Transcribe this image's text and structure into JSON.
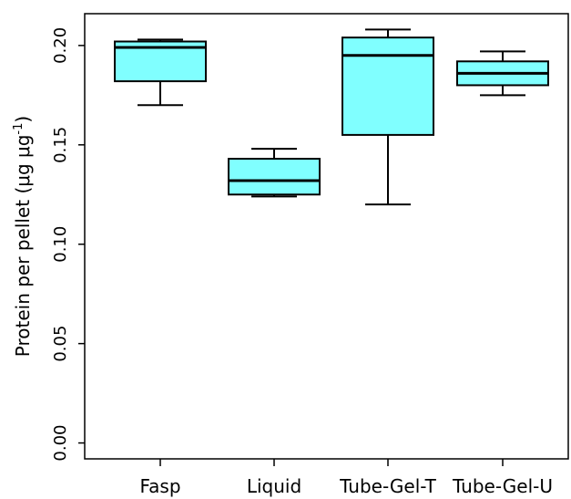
{
  "chart_data": {
    "type": "box",
    "categories": [
      "Fasp",
      "Liquid",
      "Tube-Gel-T",
      "Tube-Gel-U"
    ],
    "boxes": [
      {
        "name": "Fasp",
        "whisker_low": 0.17,
        "q1": 0.182,
        "median": 0.199,
        "q3": 0.202,
        "whisker_high": 0.203
      },
      {
        "name": "Liquid",
        "whisker_low": 0.124,
        "q1": 0.125,
        "median": 0.132,
        "q3": 0.143,
        "whisker_high": 0.148
      },
      {
        "name": "Tube-Gel-T",
        "whisker_low": 0.12,
        "q1": 0.155,
        "median": 0.195,
        "q3": 0.204,
        "whisker_high": 0.208
      },
      {
        "name": "Tube-Gel-U",
        "whisker_low": 0.175,
        "q1": 0.18,
        "median": 0.186,
        "q3": 0.192,
        "whisker_high": 0.197
      }
    ],
    "yticks": [
      "0.00",
      "0.05",
      "0.10",
      "0.15",
      "0.20"
    ],
    "ytick_values": [
      0.0,
      0.05,
      0.1,
      0.15,
      0.2
    ],
    "ylim": [
      -0.008,
      0.216
    ],
    "ylabel_main": "Protein per pellet (μg μg",
    "ylabel_sup": "-1",
    "ylabel_end": ")",
    "box_fill": "#80ffff",
    "line_color": "#000000"
  }
}
